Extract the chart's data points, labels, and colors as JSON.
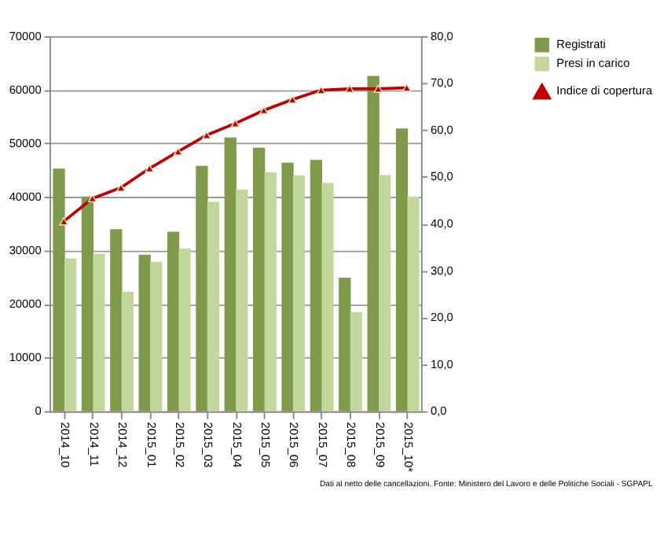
{
  "chart_data": {
    "type": "bar",
    "categories": [
      "2014_10",
      "2014_11",
      "2014_12",
      "2015_01",
      "2015_02",
      "2015_03",
      "2015_04",
      "2015_05",
      "2015_06",
      "2015_07",
      "2015_08",
      "2015_09",
      "2015_10*"
    ],
    "series": [
      {
        "name": "Registrati",
        "color": "#7f9a48",
        "values": [
          45300,
          40100,
          34000,
          29200,
          33500,
          45800,
          51100,
          49200,
          46400,
          46900,
          24900,
          62600,
          52800
        ]
      },
      {
        "name": "Presi in carico",
        "color": "#c3d69b",
        "values": [
          28500,
          29400,
          22300,
          27900,
          30400,
          39100,
          41400,
          44600,
          44000,
          42600,
          18500,
          44100,
          40100
        ]
      },
      {
        "name": "Indice di copertura",
        "type": "line",
        "axis": "y2",
        "color": "#c00000",
        "marker": "triangle",
        "values": [
          40.5,
          45.4,
          47.7,
          51.8,
          55.4,
          58.9,
          61.4,
          64.2,
          66.5,
          68.5,
          68.8,
          68.8,
          69.0
        ]
      }
    ],
    "ylim": [
      0,
      70000
    ],
    "yticks": [
      0,
      10000,
      20000,
      30000,
      40000,
      50000,
      60000,
      70000
    ],
    "y2lim": [
      0,
      80
    ],
    "y2ticks": [
      {
        "value": 0,
        "label": "0,0"
      },
      {
        "value": 10,
        "label": "10,0"
      },
      {
        "value": 20,
        "label": "20,0"
      },
      {
        "value": 30,
        "label": "30,0"
      },
      {
        "value": 40,
        "label": "40,0"
      },
      {
        "value": 50,
        "label": "50,0"
      },
      {
        "value": 60,
        "label": "60,0"
      },
      {
        "value": 70,
        "label": "70,0"
      },
      {
        "value": 80,
        "label": "80,0"
      }
    ],
    "grid": "y",
    "legend": "right",
    "annotations": [
      "Dati al netto delle cancellazioni. Fonte: Ministero del Lavoro e delle Politiche Sociali - SGPAPL"
    ]
  }
}
